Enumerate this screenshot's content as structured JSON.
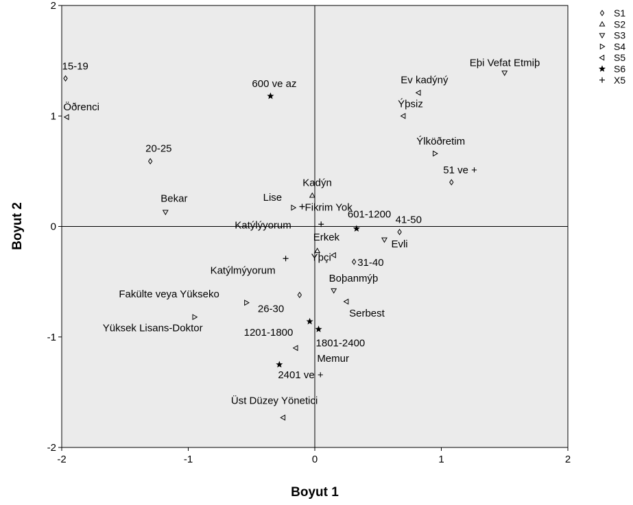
{
  "chart_data": {
    "type": "scatter",
    "title": "",
    "xlabel": "Boyut  1",
    "ylabel": "Boyut  2",
    "xlim": [
      -2,
      2
    ],
    "ylim": [
      -2,
      2
    ],
    "xticks": [
      -2,
      -1,
      0,
      1,
      2
    ],
    "yticks": [
      -2,
      -1,
      0,
      1,
      2
    ],
    "grid": false,
    "reference_lines": {
      "x": 0,
      "y": 0
    },
    "plot_background": "#ebebeb",
    "legend_position": "top-right",
    "series": [
      {
        "name": "S1",
        "marker": "diamond",
        "points": [
          {
            "label": "15-19",
            "x": -1.97,
            "y": 1.34
          },
          {
            "label": "20-25",
            "x": -1.3,
            "y": 0.59
          },
          {
            "label": "26-30",
            "x": -0.12,
            "y": -0.62
          },
          {
            "label": "31-40",
            "x": 0.31,
            "y": -0.32
          },
          {
            "label": "41-50",
            "x": 0.67,
            "y": -0.05
          },
          {
            "label": "51 ve +",
            "x": 1.08,
            "y": 0.4
          }
        ]
      },
      {
        "name": "S2",
        "marker": "triangle-up",
        "points": [
          {
            "label": "Kadýn",
            "x": -0.02,
            "y": 0.28
          },
          {
            "label": "Erkek",
            "x": 0.02,
            "y": -0.22
          }
        ]
      },
      {
        "name": "S3",
        "marker": "triangle-down",
        "points": [
          {
            "label": "Bekar",
            "x": -1.18,
            "y": 0.13
          },
          {
            "label": "Evli",
            "x": 0.55,
            "y": -0.12
          },
          {
            "label": "Boþanmýþ",
            "x": 0.15,
            "y": -0.58
          },
          {
            "label": "Eþi Vefat Etmiþ",
            "x": 1.5,
            "y": 1.39
          }
        ]
      },
      {
        "name": "S4",
        "marker": "triangle-right",
        "points": [
          {
            "label": "Ýlköðretim",
            "x": 0.95,
            "y": 0.66
          },
          {
            "label": "Lise",
            "x": -0.17,
            "y": 0.17
          },
          {
            "label": "Fakülte veya Yükseko",
            "x": -0.54,
            "y": -0.69
          },
          {
            "label": "Yüksek Lisans-Doktor",
            "x": -0.95,
            "y": -0.82
          }
        ]
      },
      {
        "name": "S5",
        "marker": "triangle-left",
        "points": [
          {
            "label": "Öðrenci",
            "x": -1.96,
            "y": 0.99
          },
          {
            "label": "Ev kadýný",
            "x": 0.82,
            "y": 1.21
          },
          {
            "label": "Ýþsiz",
            "x": 0.7,
            "y": 1.0
          },
          {
            "label": "Ýþçi",
            "x": 0.15,
            "y": -0.26
          },
          {
            "label": "Serbest",
            "x": 0.25,
            "y": -0.68
          },
          {
            "label": "Memur",
            "x": -0.15,
            "y": -1.1
          },
          {
            "label": "Üst Düzey Yönetici",
            "x": -0.25,
            "y": -1.73
          }
        ]
      },
      {
        "name": "S6",
        "marker": "star",
        "points": [
          {
            "label": "600 ve az",
            "x": -0.35,
            "y": 1.18
          },
          {
            "label": "601-1200",
            "x": 0.33,
            "y": -0.02
          },
          {
            "label": "1201-1800",
            "x": -0.04,
            "y": -0.86
          },
          {
            "label": "1801-2400",
            "x": 0.03,
            "y": -0.93
          },
          {
            "label": "2401 ve +",
            "x": -0.28,
            "y": -1.25
          }
        ]
      },
      {
        "name": "X5",
        "marker": "plus",
        "points": [
          {
            "label": "Fikrim Yok",
            "x": -0.1,
            "y": 0.18
          },
          {
            "label": "Katýlýyorum",
            "x": 0.05,
            "y": 0.02
          },
          {
            "label": "Katýlmýyorum",
            "x": -0.23,
            "y": -0.29
          }
        ]
      }
    ]
  }
}
